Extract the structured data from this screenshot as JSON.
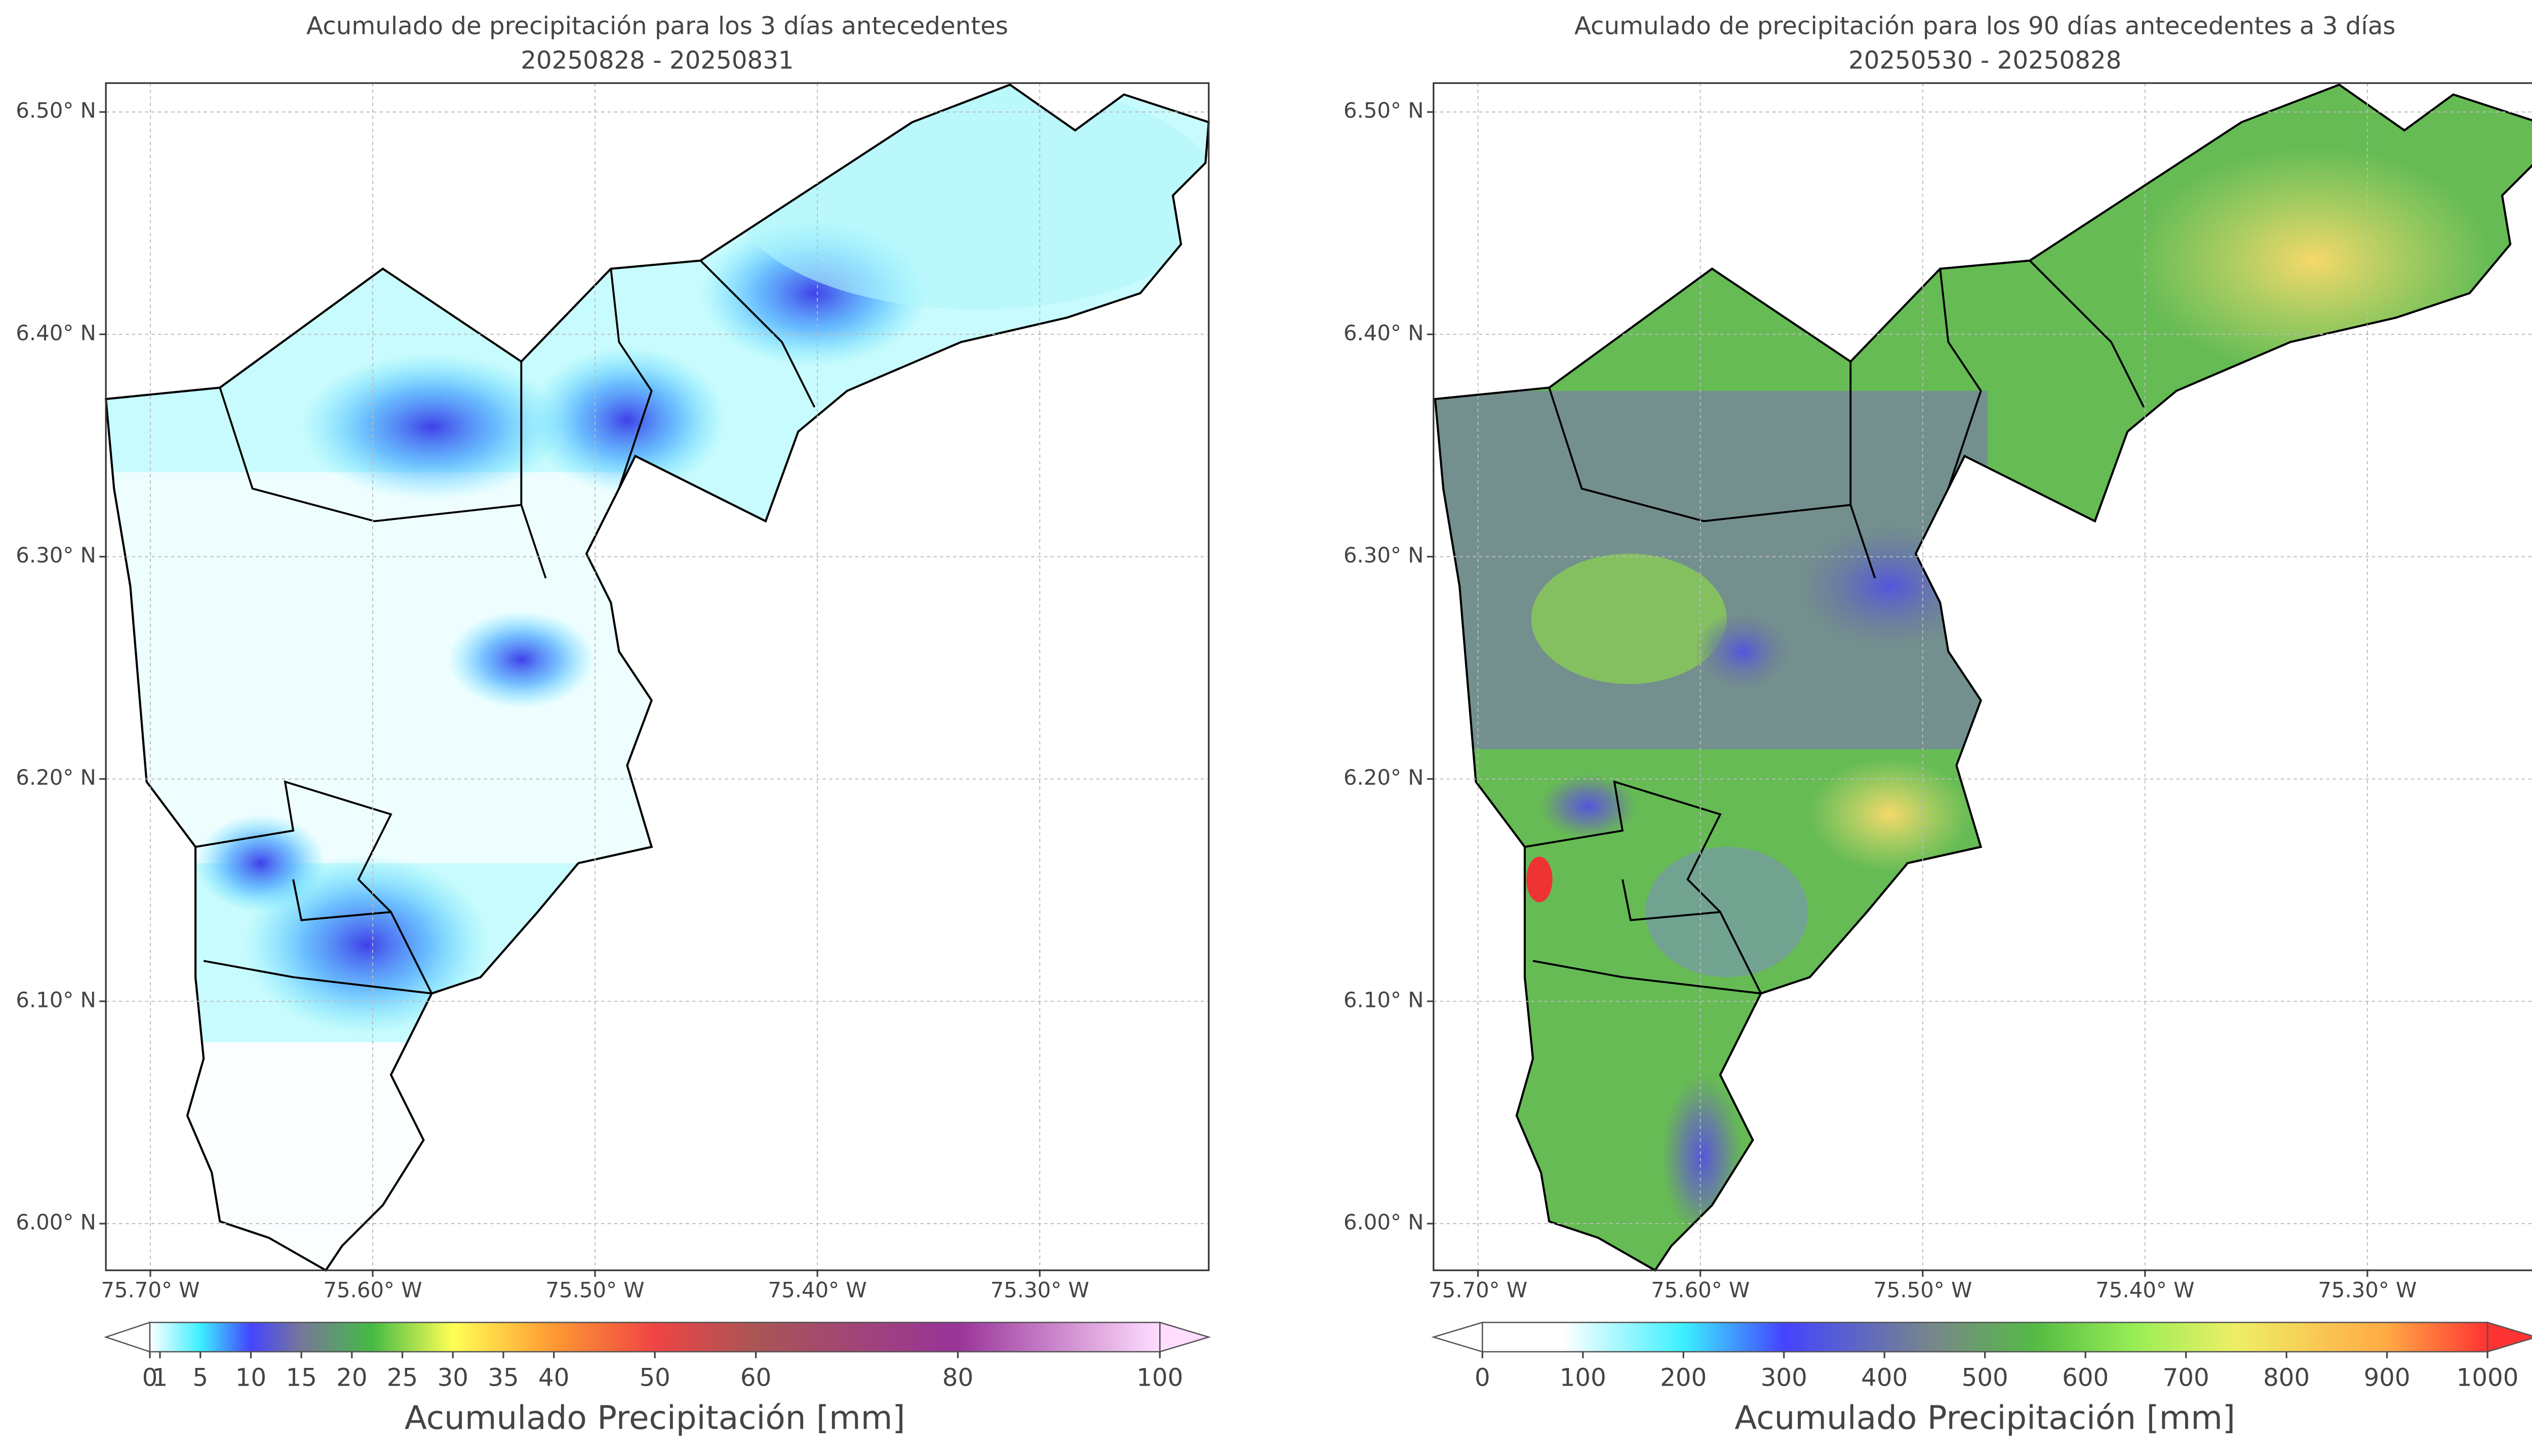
{
  "maps": [
    {
      "title": "Acumulado de precipitación para los 3 días antecedentes",
      "subtitle": "20250828 - 20250831",
      "xlim": [
        -75.72,
        -75.224
      ],
      "ylim": [
        5.979,
        6.513
      ],
      "xticks": [
        {
          "value": -75.7,
          "label": "75.70° W"
        },
        {
          "value": -75.6,
          "label": "75.60° W"
        },
        {
          "value": -75.5,
          "label": "75.50° W"
        },
        {
          "value": -75.4,
          "label": "75.40° W"
        },
        {
          "value": -75.3,
          "label": "75.30° W"
        }
      ],
      "yticks": [
        {
          "value": 6.0,
          "label": "6.00° N"
        },
        {
          "value": 6.1,
          "label": "6.10° N"
        },
        {
          "value": 6.2,
          "label": "6.20° N"
        },
        {
          "value": 6.3,
          "label": "6.30° N"
        },
        {
          "value": 6.4,
          "label": "6.40° N"
        },
        {
          "value": 6.5,
          "label": "6.50° N"
        }
      ],
      "colorbar": {
        "label": "Acumulado Precipitación [mm]",
        "lim": [
          0,
          100
        ],
        "ticks": [
          0,
          1,
          5,
          10,
          15,
          20,
          25,
          30,
          35,
          40,
          50,
          60,
          80,
          100
        ]
      }
    },
    {
      "title": "Acumulado de precipitación para los 90 días antecedentes a 3 días",
      "subtitle": "20250530 - 20250828",
      "xlim": [
        -75.72,
        -75.224
      ],
      "ylim": [
        5.979,
        6.513
      ],
      "xticks": [
        {
          "value": -75.7,
          "label": "75.70° W"
        },
        {
          "value": -75.6,
          "label": "75.60° W"
        },
        {
          "value": -75.5,
          "label": "75.50° W"
        },
        {
          "value": -75.4,
          "label": "75.40° W"
        },
        {
          "value": -75.3,
          "label": "75.30° W"
        }
      ],
      "yticks": [
        {
          "value": 6.0,
          "label": "6.00° N"
        },
        {
          "value": 6.1,
          "label": "6.10° N"
        },
        {
          "value": 6.2,
          "label": "6.20° N"
        },
        {
          "value": 6.3,
          "label": "6.30° N"
        },
        {
          "value": 6.4,
          "label": "6.40° N"
        },
        {
          "value": 6.5,
          "label": "6.50° N"
        }
      ],
      "colorbar": {
        "label": "Acumulado Precipitación [mm]",
        "lim": [
          0,
          1000
        ],
        "ticks": [
          0,
          100,
          200,
          300,
          400,
          500,
          600,
          700,
          800,
          900,
          1000
        ]
      }
    }
  ]
}
